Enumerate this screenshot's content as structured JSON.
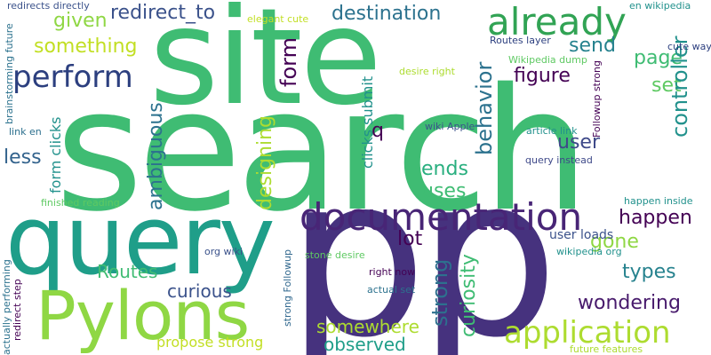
{
  "words": [
    {
      "text": "search",
      "color": "#3fbc73"
    },
    {
      "text": "p",
      "color": "#46327e"
    },
    {
      "text": "p",
      "color": "#46327e"
    },
    {
      "text": "site",
      "color": "#3fbc73"
    },
    {
      "text": "query",
      "color": "#1f9e89"
    },
    {
      "text": "Pylons",
      "color": "#8fd744"
    },
    {
      "text": "documentation",
      "color": "#482576"
    },
    {
      "text": "already",
      "color": "#31a354"
    },
    {
      "text": "application",
      "color": "#addc30"
    },
    {
      "text": "perform",
      "color": "#2c3f7f"
    },
    {
      "text": "destination",
      "color": "#2c728e"
    },
    {
      "text": "redirect_to",
      "color": "#3b528b"
    },
    {
      "text": "given",
      "color": "#8fd744"
    },
    {
      "text": "something",
      "color": "#c2df23"
    },
    {
      "text": "send",
      "color": "#440154"
    },
    {
      "text": "form",
      "color": "#26828e"
    },
    {
      "text": "page",
      "color": "#3fbc73"
    },
    {
      "text": "figure",
      "color": "#440154"
    },
    {
      "text": "set",
      "color": "#5ec962"
    },
    {
      "text": "controller",
      "color": "#21918c"
    },
    {
      "text": "behavior",
      "color": "#2c728e"
    },
    {
      "text": "user",
      "color": "#3e4989"
    },
    {
      "text": "ends",
      "color": "#29af7f"
    },
    {
      "text": "uses",
      "color": "#3fbc73"
    },
    {
      "text": "happen",
      "color": "#440154"
    },
    {
      "text": "gone",
      "color": "#8fd744"
    },
    {
      "text": "types",
      "color": "#26828e"
    },
    {
      "text": "wondering",
      "color": "#481a6c"
    },
    {
      "text": "lot",
      "color": "#440154"
    },
    {
      "text": "strong",
      "color": "#2d708e"
    },
    {
      "text": "curiosity",
      "color": "#3fbc73"
    },
    {
      "text": "somewhere",
      "color": "#addc30"
    },
    {
      "text": "observed",
      "color": "#1f9e89"
    },
    {
      "text": "Routes",
      "color": "#3fbc73"
    },
    {
      "text": "curious",
      "color": "#3b528b"
    },
    {
      "text": "propose strong",
      "color": "#c2df23"
    },
    {
      "text": "ambiguous",
      "color": "#2c728e"
    },
    {
      "text": "designing",
      "color": "#addc30"
    },
    {
      "text": "less",
      "color": "#33638d"
    },
    {
      "text": "q",
      "color": "#440154"
    },
    {
      "text": "clicks submit",
      "color": "#21918c"
    },
    {
      "text": "form clicks",
      "color": "#21918c"
    },
    {
      "text": "user loads",
      "color": "#3b528b"
    },
    {
      "text": "finished reading",
      "color": "#5ec962"
    },
    {
      "text": "redirects directly",
      "color": "#3b528b"
    },
    {
      "text": "brainstorming future",
      "color": "#2c728e"
    },
    {
      "text": "elegant cute",
      "color": "#c2df23"
    },
    {
      "text": "en wikipedia",
      "color": "#21918c"
    },
    {
      "text": "Routes layer",
      "color": "#2c3f7f"
    },
    {
      "text": "Wikipedia dump",
      "color": "#5ec962"
    },
    {
      "text": "desire right",
      "color": "#addc30"
    },
    {
      "text": "cute way",
      "color": "#2c3f7f"
    },
    {
      "text": "Followup strong",
      "color": "#440154"
    },
    {
      "text": "article link",
      "color": "#21918c"
    },
    {
      "text": "wiki Apple",
      "color": "#3b528b"
    },
    {
      "text": "query instead",
      "color": "#3e4989"
    },
    {
      "text": "link en",
      "color": "#2d708e"
    },
    {
      "text": "happen inside",
      "color": "#21918c"
    },
    {
      "text": "org wiki",
      "color": "#3b528b"
    },
    {
      "text": "stone desire",
      "color": "#5ec962"
    },
    {
      "text": "strong Followup",
      "color": "#31688e"
    },
    {
      "text": "right now",
      "color": "#440154"
    },
    {
      "text": "actual set",
      "color": "#2c728e"
    },
    {
      "text": "wikipedia org",
      "color": "#21918c"
    },
    {
      "text": "future features",
      "color": "#addc30"
    },
    {
      "text": "actually performing",
      "color": "#2c728e"
    },
    {
      "text": "redirect step",
      "color": "#440154"
    }
  ]
}
